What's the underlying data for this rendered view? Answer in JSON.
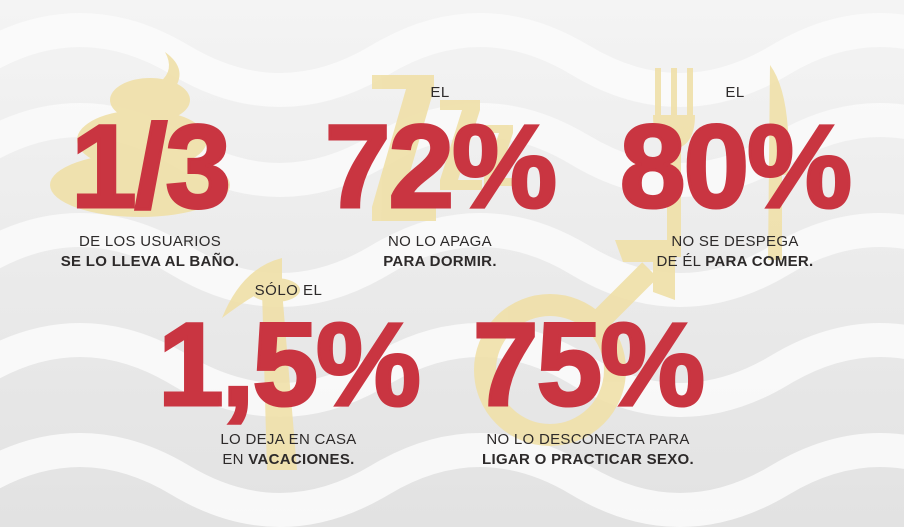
{
  "colors": {
    "accent": "#c93541",
    "icon": "#f0e0a8",
    "text": "#2d2a2a"
  },
  "stats": [
    {
      "pre": "",
      "value": "1/3",
      "line1": "DE LOS USUARIOS",
      "line2_normal": "",
      "line2_bold": "SE LO LLEVA AL BAÑO.",
      "icon": "poop-icon"
    },
    {
      "pre": "EL",
      "value": "72%",
      "line1": "NO LO APAGA",
      "line2_normal": "",
      "line2_bold": "PARA DORMIR.",
      "icon": "sleep-zzz-icon"
    },
    {
      "pre": "EL",
      "value": "80%",
      "line1": "NO SE DESPEGA",
      "line2_normal": "DE ÉL ",
      "line2_bold": "PARA COMER.",
      "icon": "fork-knife-icon"
    },
    {
      "pre": "SÓLO EL",
      "value": "1,5%",
      "line1": "LO DEJA EN CASA",
      "line2_normal": "EN ",
      "line2_bold": "VACACIONES.",
      "icon": "palm-tree-icon"
    },
    {
      "pre": "",
      "value": "75%",
      "line1": "NO LO DESCONECTA PARA",
      "line2_normal": "",
      "line2_bold": "LIGAR O PRACTICAR SEXO.",
      "icon": "male-symbol-icon"
    }
  ]
}
